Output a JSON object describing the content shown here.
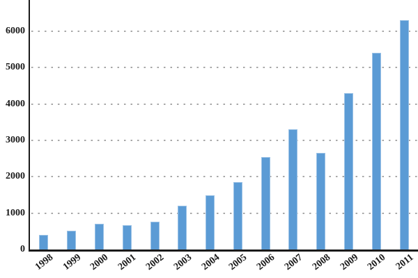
{
  "chart_data": {
    "type": "bar",
    "title": "",
    "xlabel": "",
    "ylabel": "",
    "categories": [
      "1998",
      "1999",
      "2000",
      "2001",
      "2002",
      "2003",
      "2004",
      "2005",
      "2006",
      "2007",
      "2008",
      "2009",
      "2010",
      "2011"
    ],
    "values": [
      400,
      520,
      700,
      660,
      760,
      1200,
      1500,
      1850,
      2550,
      3300,
      2650,
      4300,
      5400,
      6300
    ],
    "yticks": [
      0,
      1000,
      2000,
      3000,
      4000,
      5000,
      6000
    ],
    "ylim": [
      0,
      6860
    ],
    "legend": "none",
    "grid": "horizontal-dotted",
    "colors": {
      "bar_fill": "#5b9bd5",
      "bar_border": "#9bc2e6",
      "axis": "#1a1a1a",
      "gridline": "#a8a8a8",
      "tick_label": "#1a1a1a",
      "background": "#ffffff"
    }
  }
}
